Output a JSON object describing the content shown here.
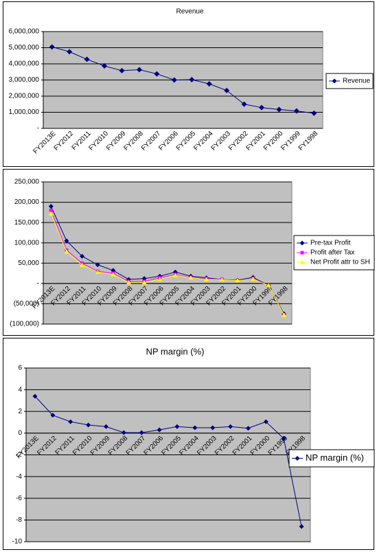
{
  "chart_data": [
    {
      "type": "line",
      "title": "Revenue",
      "marker_size": 3,
      "categories": [
        "FY2013E",
        "FY2012",
        "FY2011",
        "FY2010",
        "FY2009",
        "FY2008",
        "FY2007",
        "FY2006",
        "FY2005",
        "FY2004",
        "FY2003",
        "FY2002",
        "FY2001",
        "FY2000",
        "FY1999",
        "FY1998"
      ],
      "series": [
        {
          "name": "Revenue",
          "color": "#000080",
          "marker": "diamond",
          "values": [
            5050000,
            4750000,
            4280000,
            3870000,
            3580000,
            3640000,
            3380000,
            3000000,
            3020000,
            2760000,
            2350000,
            1500000,
            1290000,
            1170000,
            1080000,
            940000
          ]
        }
      ],
      "ylim": [
        0,
        6000000
      ],
      "yticks": [
        {
          "value": 0,
          "label": "-"
        },
        {
          "value": 1000000,
          "label": "1,000,000"
        },
        {
          "value": 2000000,
          "label": "2,000,000"
        },
        {
          "value": 3000000,
          "label": "3,000,000"
        },
        {
          "value": 4000000,
          "label": "4,000,000"
        },
        {
          "value": 5000000,
          "label": "5,000,000"
        },
        {
          "value": 6000000,
          "label": "6,000,000"
        }
      ],
      "grid": true,
      "legend": "right"
    },
    {
      "type": "line",
      "categories": [
        "FY2013E",
        "FY2012",
        "FY2011",
        "FY2010",
        "FY2009",
        "FY2008",
        "FY2007",
        "FY2006",
        "FY2005",
        "FY2004",
        "FY2003",
        "FY2002",
        "FY2001",
        "FY2000",
        "FY1999",
        "FY1998"
      ],
      "series": [
        {
          "name": "Pre-tax Profit",
          "color": "#000080",
          "marker": "diamond",
          "values": [
            190000,
            105000,
            67000,
            46000,
            32000,
            10000,
            12000,
            18000,
            28000,
            18000,
            14000,
            10000,
            8000,
            15000,
            -5000,
            -75000
          ]
        },
        {
          "name": "Profit after Tax",
          "color": "#ff00ff",
          "marker": "square",
          "values": [
            180000,
            82000,
            50000,
            30000,
            25000,
            5000,
            5000,
            14000,
            22000,
            15000,
            12000,
            10000,
            7000,
            12000,
            -5000,
            -77000
          ]
        },
        {
          "name": "Net Profit attr to SH",
          "color": "#ffff00",
          "marker": "triangle",
          "values": [
            172000,
            78000,
            45000,
            28000,
            22000,
            2000,
            2000,
            10000,
            20000,
            14000,
            10000,
            9000,
            7000,
            11000,
            -5000,
            -78000
          ]
        }
      ],
      "ylim": [
        -100000,
        250000
      ],
      "yticks": [
        {
          "value": -100000,
          "label": "(100,000)"
        },
        {
          "value": -50000,
          "label": "(50,000)"
        },
        {
          "value": 0,
          "label": "-"
        },
        {
          "value": 50000,
          "label": "50,000"
        },
        {
          "value": 100000,
          "label": "100,000"
        },
        {
          "value": 150000,
          "label": "150,000"
        },
        {
          "value": 200000,
          "label": "200,000"
        },
        {
          "value": 250000,
          "label": "250,000"
        }
      ],
      "grid": true,
      "legend": "right"
    },
    {
      "type": "line",
      "title": "NP margin (%)",
      "categories": [
        "FY2013E",
        "FY2012",
        "FY2011",
        "FY2010",
        "FY2009",
        "FY2008",
        "FY2007",
        "FY2006",
        "FY2005",
        "FY2004",
        "FY2003",
        "FY2002",
        "FY2001",
        "FY2000",
        "FY1999",
        "FY1998"
      ],
      "series": [
        {
          "name": "NP margin (%)",
          "color": "#000080",
          "marker": "diamond",
          "values": [
            3.4,
            1.65,
            1.05,
            0.75,
            0.6,
            0.05,
            0.05,
            0.3,
            0.6,
            0.5,
            0.5,
            0.6,
            0.45,
            1.05,
            -0.5,
            -8.6
          ]
        }
      ],
      "ylim": [
        -10,
        6
      ],
      "yticks": [
        -10,
        -8,
        -6,
        -4,
        -2,
        0,
        2,
        4,
        6
      ],
      "grid": true,
      "legend": "right"
    }
  ]
}
